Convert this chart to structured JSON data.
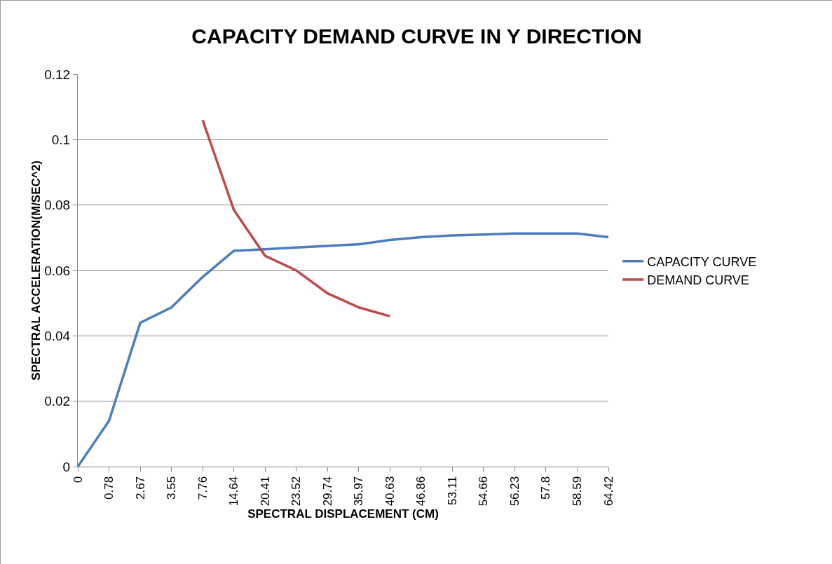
{
  "chart_data": {
    "type": "line",
    "title": "CAPACITY DEMAND CURVE IN Y DIRECTION",
    "xlabel": "SPECTRAL DISPLACEMENT (CM)",
    "ylabel": "SPECTRAL ACCELERATION(M/SEC^2)",
    "categories": [
      "0",
      "0.78",
      "2.67",
      "3.55",
      "7.76",
      "14.64",
      "20.41",
      "23.52",
      "29.74",
      "35.97",
      "40.63",
      "46.86",
      "53.11",
      "54.66",
      "56.23",
      "57.8",
      "58.59",
      "64.42"
    ],
    "series": [
      {
        "name": "CAPACITY CURVE",
        "color": "#4a7ebb",
        "values": [
          0,
          0.014,
          0.044,
          0.0487,
          0.058,
          0.066,
          0.0665,
          0.067,
          0.0675,
          0.068,
          0.0693,
          0.0702,
          0.0707,
          0.071,
          0.0713,
          0.0713,
          0.0713,
          0.0702
        ]
      },
      {
        "name": "DEMAND CURVE",
        "color": "#be4b48",
        "values": [
          null,
          null,
          null,
          null,
          0.106,
          0.0785,
          0.0645,
          0.06,
          0.053,
          0.0487,
          0.046,
          null,
          null,
          null,
          null,
          null,
          null,
          null
        ]
      }
    ],
    "ylim": [
      0,
      0.12
    ],
    "yticks": [
      0,
      0.02,
      0.04,
      0.06,
      0.08,
      0.1,
      0.12
    ],
    "grid": "y",
    "legend": "right",
    "marker": "none",
    "line_style": "solid"
  }
}
